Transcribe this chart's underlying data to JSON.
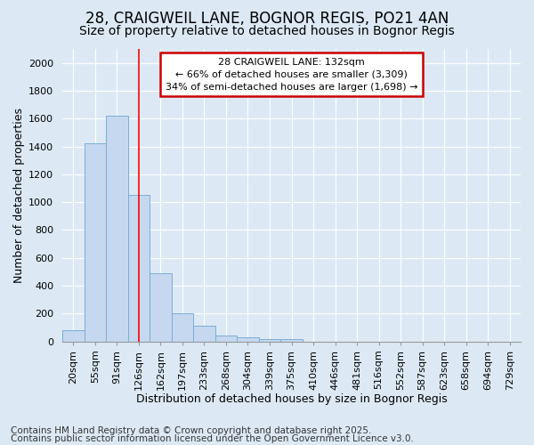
{
  "title1": "28, CRAIGWEIL LANE, BOGNOR REGIS, PO21 4AN",
  "title2": "Size of property relative to detached houses in Bognor Regis",
  "xlabel": "Distribution of detached houses by size in Bognor Regis",
  "ylabel": "Number of detached properties",
  "categories": [
    "20sqm",
    "55sqm",
    "91sqm",
    "126sqm",
    "162sqm",
    "197sqm",
    "233sqm",
    "268sqm",
    "304sqm",
    "339sqm",
    "375sqm",
    "410sqm",
    "446sqm",
    "481sqm",
    "516sqm",
    "552sqm",
    "587sqm",
    "623sqm",
    "658sqm",
    "694sqm",
    "729sqm"
  ],
  "values": [
    80,
    1420,
    1620,
    1050,
    490,
    205,
    110,
    40,
    30,
    15,
    15,
    0,
    0,
    0,
    0,
    0,
    0,
    0,
    0,
    0,
    0
  ],
  "bar_color": "#c5d8f0",
  "bar_edge_color": "#7badd4",
  "background_color": "#dce9f5",
  "grid_color": "#ffffff",
  "red_line_x": 3.0,
  "annotation_line1": "28 CRAIGWEIL LANE: 132sqm",
  "annotation_line2": "← 66% of detached houses are smaller (3,309)",
  "annotation_line3": "34% of semi-detached houses are larger (1,698) →",
  "annotation_box_color": "#ffffff",
  "annotation_box_edge": "#cc0000",
  "footer1": "Contains HM Land Registry data © Crown copyright and database right 2025.",
  "footer2": "Contains public sector information licensed under the Open Government Licence v3.0.",
  "ylim": [
    0,
    2100
  ],
  "yticks": [
    0,
    200,
    400,
    600,
    800,
    1000,
    1200,
    1400,
    1600,
    1800,
    2000
  ],
  "title1_fontsize": 12,
  "title2_fontsize": 10,
  "xlabel_fontsize": 9,
  "ylabel_fontsize": 9,
  "tick_fontsize": 8,
  "annot_fontsize": 8,
  "footer_fontsize": 7.5
}
